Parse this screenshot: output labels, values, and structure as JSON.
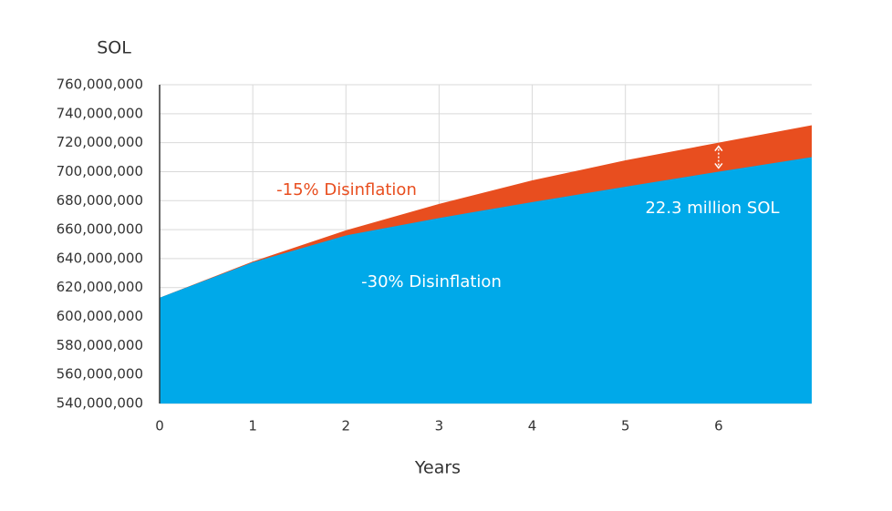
{
  "chart_data": {
    "type": "area",
    "y_axis_title": "SOL",
    "x_axis_title": "Years",
    "x": [
      0,
      1,
      2,
      3,
      4,
      5,
      6,
      7
    ],
    "series": [
      {
        "name": "-15% Disinflation",
        "color": "#e84e1f",
        "values": [
          613,
          638,
          659.5,
          677.7,
          694,
          707.8,
          720,
          732
        ]
      },
      {
        "name": "-30% Disinflation",
        "color": "#00a9e9",
        "values": [
          613,
          637.4,
          656,
          668,
          679,
          689.6,
          700,
          710
        ]
      }
    ],
    "annotation": "22.3 million SOL",
    "xlim": [
      0,
      7
    ],
    "xticks": [
      0,
      1,
      2,
      3,
      4,
      5,
      6
    ],
    "ylim": [
      540,
      760
    ],
    "yticks": [
      {
        "value": 540,
        "label": "540,000,000"
      },
      {
        "value": 560,
        "label": "560,000,000"
      },
      {
        "value": 580,
        "label": "580,000,000"
      },
      {
        "value": 600,
        "label": "600,000,000"
      },
      {
        "value": 620,
        "label": "620,000,000"
      },
      {
        "value": 640,
        "label": "640,000,000"
      },
      {
        "value": 660,
        "label": "660,000,000"
      },
      {
        "value": 680,
        "label": "680,000,000"
      },
      {
        "value": 700,
        "label": "700,000,000"
      },
      {
        "value": 720,
        "label": "720,000,000"
      },
      {
        "value": 740,
        "label": "740,000,000"
      },
      {
        "value": 760,
        "label": "760,000,000"
      }
    ],
    "grid": true
  }
}
